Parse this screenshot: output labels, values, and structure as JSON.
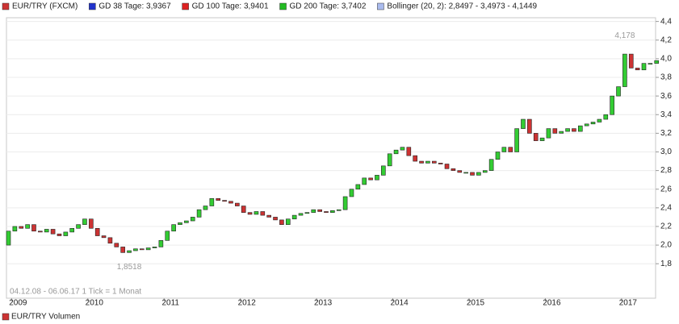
{
  "chart_data": {
    "type": "candlestick",
    "legend": [
      "EUR/TRY (FXCM)",
      "GD 38 Tage: 3,9367",
      "GD 100 Tage: 3,9401",
      "GD 200 Tage: 3,7402",
      "Bollinger (20, 2): 2,8497 - 3,4973 - 4,1449"
    ],
    "legend_colors": [
      "#cc3333",
      "#2233cc",
      "#dd2222",
      "#22bb22",
      "#aabbee"
    ],
    "categories": [
      null,
      "2009",
      null,
      null,
      null,
      null,
      null,
      null,
      null,
      null,
      null,
      null,
      null,
      "2010",
      null,
      null,
      null,
      null,
      null,
      null,
      null,
      null,
      null,
      null,
      null,
      "2011",
      null,
      null,
      null,
      null,
      null,
      null,
      null,
      null,
      null,
      null,
      null,
      "2012",
      null,
      null,
      null,
      null,
      null,
      null,
      null,
      null,
      null,
      null,
      null,
      "2013",
      null,
      null,
      null,
      null,
      null,
      null,
      null,
      null,
      null,
      null,
      null,
      "2014",
      null,
      null,
      null,
      null,
      null,
      null,
      null,
      null,
      null,
      null,
      null,
      "2015",
      null,
      null,
      null,
      null,
      null,
      null,
      null,
      null,
      null,
      null,
      null,
      "2016",
      null,
      null,
      null,
      null,
      null,
      null,
      null,
      null,
      null,
      null,
      null,
      "2017",
      null,
      null,
      null,
      null,
      null
    ],
    "open": [
      2.0,
      2.15,
      2.2,
      2.18,
      2.22,
      2.15,
      2.14,
      2.17,
      2.12,
      2.1,
      2.14,
      2.18,
      2.22,
      2.28,
      2.18,
      2.1,
      2.08,
      2.02,
      1.98,
      1.92,
      1.94,
      1.96,
      1.95,
      1.97,
      1.98,
      2.05,
      2.15,
      2.22,
      2.24,
      2.26,
      2.3,
      2.38,
      2.42,
      2.5,
      2.48,
      2.47,
      2.45,
      2.42,
      2.35,
      2.33,
      2.36,
      2.32,
      2.3,
      2.27,
      2.22,
      2.28,
      2.32,
      2.34,
      2.35,
      2.38,
      2.36,
      2.35,
      2.37,
      2.38,
      2.52,
      2.6,
      2.65,
      2.72,
      2.7,
      2.75,
      2.85,
      2.98,
      3.02,
      3.05,
      2.96,
      2.9,
      2.88,
      2.9,
      2.88,
      2.87,
      2.82,
      2.8,
      2.78,
      2.78,
      2.75,
      2.78,
      2.8,
      2.92,
      3.0,
      3.05,
      3.0,
      3.25,
      3.35,
      3.2,
      3.12,
      3.15,
      3.25,
      3.2,
      3.22,
      3.25,
      3.22,
      3.28,
      3.3,
      3.32,
      3.35,
      3.4,
      3.6,
      3.7,
      4.05,
      3.9,
      3.88,
      3.95,
      3.95
    ],
    "close": [
      2.15,
      2.2,
      2.18,
      2.22,
      2.15,
      2.14,
      2.17,
      2.12,
      2.1,
      2.14,
      2.18,
      2.22,
      2.28,
      2.18,
      2.1,
      2.08,
      2.02,
      1.98,
      1.92,
      1.94,
      1.96,
      1.95,
      1.97,
      1.98,
      2.05,
      2.15,
      2.22,
      2.24,
      2.26,
      2.3,
      2.38,
      2.42,
      2.5,
      2.48,
      2.47,
      2.45,
      2.42,
      2.35,
      2.33,
      2.36,
      2.32,
      2.3,
      2.27,
      2.22,
      2.28,
      2.32,
      2.34,
      2.35,
      2.38,
      2.36,
      2.35,
      2.37,
      2.38,
      2.52,
      2.6,
      2.65,
      2.72,
      2.7,
      2.75,
      2.85,
      2.98,
      3.02,
      3.05,
      2.96,
      2.9,
      2.88,
      2.9,
      2.88,
      2.87,
      2.82,
      2.8,
      2.78,
      2.78,
      2.75,
      2.78,
      2.8,
      2.92,
      3.0,
      3.05,
      3.0,
      3.25,
      3.35,
      3.2,
      3.12,
      3.15,
      3.25,
      3.2,
      3.22,
      3.25,
      3.22,
      3.28,
      3.3,
      3.32,
      3.35,
      3.4,
      3.6,
      3.7,
      4.05,
      3.9,
      3.88,
      3.95,
      3.95,
      3.98
    ],
    "up_color": "#33cc33",
    "down_color": "#cc3333",
    "ylim": [
      1.43,
      4.44
    ],
    "yticks": [
      {
        "value": 1.8,
        "label": "1,8"
      },
      {
        "value": 2.0,
        "label": "2,0"
      },
      {
        "value": 2.2,
        "label": "2,2"
      },
      {
        "value": 2.4,
        "label": "2,4"
      },
      {
        "value": 2.6,
        "label": "2,6"
      },
      {
        "value": 2.8,
        "label": "2,8"
      },
      {
        "value": 3.0,
        "label": "3,0"
      },
      {
        "value": 3.2,
        "label": "3,2"
      },
      {
        "value": 3.4,
        "label": "3,4"
      },
      {
        "value": 3.6,
        "label": "3,6"
      },
      {
        "value": 3.8,
        "label": "3,8"
      },
      {
        "value": 4.0,
        "label": "4,0"
      },
      {
        "value": 4.2,
        "label": "4,2"
      },
      {
        "value": 4.4,
        "label": "4,4"
      }
    ],
    "annotations": [
      {
        "index": 97,
        "value": 4.178,
        "label": "4,178"
      },
      {
        "index": 19,
        "value": 1.8518,
        "label": "1,8518"
      }
    ],
    "range_note": "04.12.08 - 06.06.17   1 Tick = 1 Monat",
    "volume_legend": "EUR/TRY Volumen",
    "grid": true
  }
}
